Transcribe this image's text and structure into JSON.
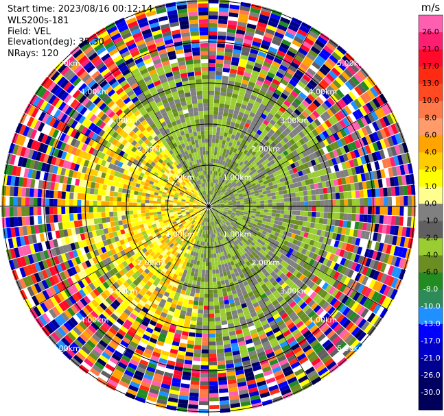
{
  "info": {
    "start_time": "Start time: 2023/08/16 00:12:14",
    "instrument": "WLS200s-181",
    "field": "Field: VEL",
    "elevation": "Elevation(deg): 35.30",
    "nrays": "NRays: 120"
  },
  "chart_data": {
    "type": "ppi",
    "field": "VEL",
    "units": "m/s",
    "nrays": 120,
    "range_ring_labels": [
      "1.00km",
      "2.00km",
      "3.00km",
      "4.00km",
      "5.00km"
    ],
    "colorbar": {
      "label": "m/s",
      "ticks": [
        "26.0",
        "21.0",
        "17.0",
        "13.0",
        "10.0",
        "8.0",
        "6.0",
        "4.0",
        "2.0",
        "1.0",
        "0.0",
        "-1.0",
        "-2.0",
        "-4.0",
        "-6.0",
        "-8.0",
        "-10.0",
        "-13.0",
        "-17.0",
        "-21.0",
        "-26.0",
        "-30.0"
      ],
      "colors": [
        "#ff5fb0",
        "#ff1f72",
        "#ff0a2a",
        "#ff2a12",
        "#ff4a22",
        "#ff7a48",
        "#ff9c6a",
        "#ffa400",
        "#ffcc00",
        "#ffff00",
        "#ffff90",
        "#808080",
        "#606060",
        "#9acd32",
        "#6b8e23",
        "#228b22",
        "#2e8b57",
        "#1e90ff",
        "#0000ff",
        "#0000c8",
        "#000090",
        "#000060",
        "#00005a"
      ]
    }
  }
}
